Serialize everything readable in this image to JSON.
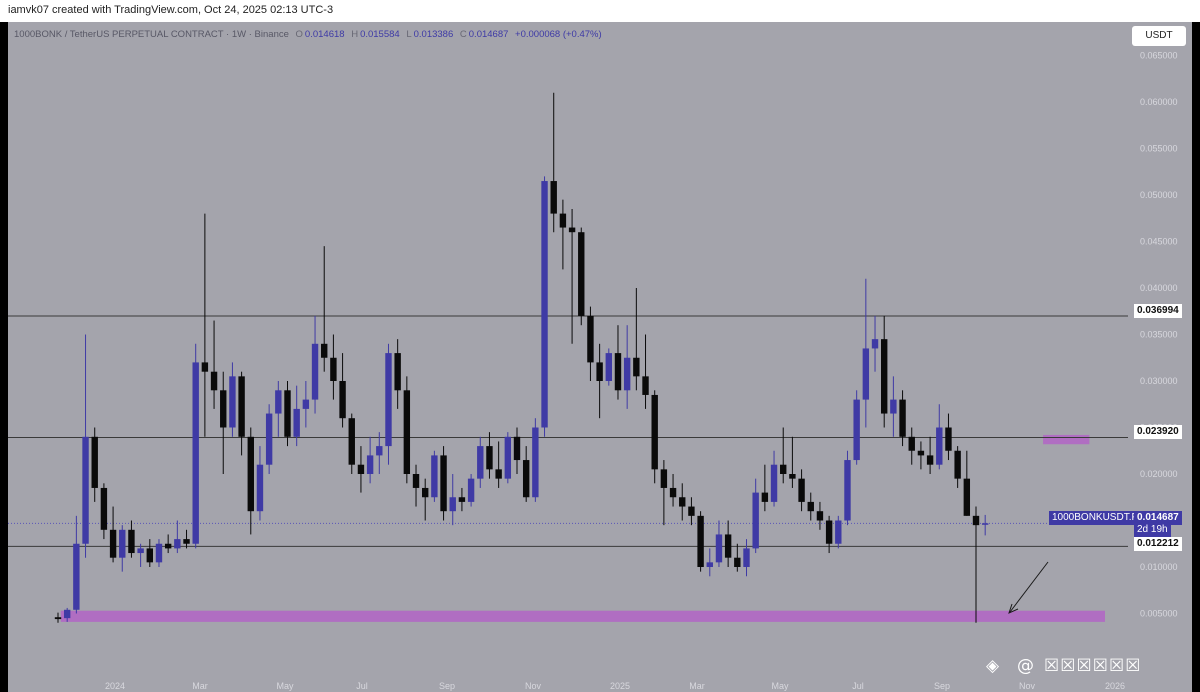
{
  "header": {
    "credit": "iamvk07 created with TradingView.com, Oct 24, 2025 02:13 UTC-3"
  },
  "legend": {
    "symbol": "1000BONK / TetherUS PERPETUAL CONTRACT · 1W · Binance",
    "open_label": "O",
    "open": "0.014618",
    "high_label": "H",
    "high": "0.015584",
    "low_label": "L",
    "low": "0.013386",
    "close_label": "C",
    "close": "0.014687",
    "change": "+0.000068 (+0.47%)"
  },
  "currency_button": "USDT",
  "price_labels": {
    "line_top": "0.036994",
    "line_mid": "0.023920",
    "ticker": "1000BONKUSDT.P",
    "last": "0.014687",
    "countdown": "2d 19h",
    "line_low": "0.012212"
  },
  "watermark": {
    "glyph": "◈",
    "at": "@",
    "masked": "☒☒☒☒☒☒"
  },
  "colors": {
    "bull": "#3f3aa5",
    "bear": "#0a0a0a",
    "zone": "#b06ec2",
    "line": "#3a3a3a",
    "background": "#a4a4ac"
  },
  "chart_data": {
    "type": "candlestick",
    "symbol": "1000BONKUSDT.P",
    "timeframe": "1W",
    "y_scale": "linear",
    "ylim": [
      0.0,
      0.066
    ],
    "y_ticks": [
      "0.005000",
      "0.010000",
      "0.015000",
      "0.020000",
      "0.025000",
      "0.030000",
      "0.035000",
      "0.040000",
      "0.045000",
      "0.050000",
      "0.055000",
      "0.060000",
      "0.065000"
    ],
    "x_ticks": [
      "2024",
      "Mar",
      "May",
      "Jul",
      "Sep",
      "Nov",
      "2025",
      "Mar",
      "May",
      "Jul",
      "Sep",
      "Nov",
      "2026"
    ],
    "horizontal_lines": [
      0.036994,
      0.02392,
      0.012212
    ],
    "last_price_line": 0.014687,
    "zones": [
      {
        "from": 0.0041,
        "to": 0.0053,
        "start": 0,
        "end": "right"
      },
      {
        "from": 0.0232,
        "to": 0.0242,
        "start": 107,
        "end": 112
      }
    ],
    "candles": [
      {
        "o": 0.0046,
        "h": 0.0051,
        "l": 0.004,
        "c": 0.0044
      },
      {
        "o": 0.0045,
        "h": 0.0056,
        "l": 0.0041,
        "c": 0.0054
      },
      {
        "o": 0.0054,
        "h": 0.0155,
        "l": 0.005,
        "c": 0.0125
      },
      {
        "o": 0.0125,
        "h": 0.035,
        "l": 0.011,
        "c": 0.024
      },
      {
        "o": 0.024,
        "h": 0.025,
        "l": 0.017,
        "c": 0.0185
      },
      {
        "o": 0.0185,
        "h": 0.019,
        "l": 0.013,
        "c": 0.014
      },
      {
        "o": 0.014,
        "h": 0.0165,
        "l": 0.0105,
        "c": 0.011
      },
      {
        "o": 0.011,
        "h": 0.0145,
        "l": 0.0095,
        "c": 0.014
      },
      {
        "o": 0.014,
        "h": 0.015,
        "l": 0.011,
        "c": 0.0115
      },
      {
        "o": 0.0115,
        "h": 0.0125,
        "l": 0.01,
        "c": 0.012
      },
      {
        "o": 0.012,
        "h": 0.013,
        "l": 0.01,
        "c": 0.0105
      },
      {
        "o": 0.0105,
        "h": 0.013,
        "l": 0.01,
        "c": 0.0125
      },
      {
        "o": 0.0125,
        "h": 0.0135,
        "l": 0.0115,
        "c": 0.012
      },
      {
        "o": 0.012,
        "h": 0.015,
        "l": 0.0115,
        "c": 0.013
      },
      {
        "o": 0.013,
        "h": 0.014,
        "l": 0.012,
        "c": 0.0125
      },
      {
        "o": 0.0125,
        "h": 0.034,
        "l": 0.012,
        "c": 0.032
      },
      {
        "o": 0.032,
        "h": 0.048,
        "l": 0.024,
        "c": 0.031
      },
      {
        "o": 0.031,
        "h": 0.0365,
        "l": 0.027,
        "c": 0.029
      },
      {
        "o": 0.029,
        "h": 0.031,
        "l": 0.02,
        "c": 0.025
      },
      {
        "o": 0.025,
        "h": 0.032,
        "l": 0.024,
        "c": 0.0305
      },
      {
        "o": 0.0305,
        "h": 0.031,
        "l": 0.022,
        "c": 0.024
      },
      {
        "o": 0.024,
        "h": 0.025,
        "l": 0.0135,
        "c": 0.016
      },
      {
        "o": 0.016,
        "h": 0.023,
        "l": 0.015,
        "c": 0.021
      },
      {
        "o": 0.021,
        "h": 0.0275,
        "l": 0.02,
        "c": 0.0265
      },
      {
        "o": 0.0265,
        "h": 0.03,
        "l": 0.024,
        "c": 0.029
      },
      {
        "o": 0.029,
        "h": 0.03,
        "l": 0.023,
        "c": 0.024
      },
      {
        "o": 0.024,
        "h": 0.0295,
        "l": 0.023,
        "c": 0.027
      },
      {
        "o": 0.027,
        "h": 0.03,
        "l": 0.025,
        "c": 0.028
      },
      {
        "o": 0.028,
        "h": 0.037,
        "l": 0.0265,
        "c": 0.034
      },
      {
        "o": 0.034,
        "h": 0.0445,
        "l": 0.031,
        "c": 0.0325
      },
      {
        "o": 0.0325,
        "h": 0.035,
        "l": 0.028,
        "c": 0.03
      },
      {
        "o": 0.03,
        "h": 0.033,
        "l": 0.025,
        "c": 0.026
      },
      {
        "o": 0.026,
        "h": 0.0265,
        "l": 0.02,
        "c": 0.021
      },
      {
        "o": 0.021,
        "h": 0.023,
        "l": 0.018,
        "c": 0.02
      },
      {
        "o": 0.02,
        "h": 0.024,
        "l": 0.019,
        "c": 0.022
      },
      {
        "o": 0.022,
        "h": 0.0245,
        "l": 0.02,
        "c": 0.023
      },
      {
        "o": 0.023,
        "h": 0.034,
        "l": 0.021,
        "c": 0.033
      },
      {
        "o": 0.033,
        "h": 0.0345,
        "l": 0.027,
        "c": 0.029
      },
      {
        "o": 0.029,
        "h": 0.0305,
        "l": 0.019,
        "c": 0.02
      },
      {
        "o": 0.02,
        "h": 0.021,
        "l": 0.0165,
        "c": 0.0185
      },
      {
        "o": 0.0185,
        "h": 0.0195,
        "l": 0.015,
        "c": 0.0175
      },
      {
        "o": 0.0175,
        "h": 0.0225,
        "l": 0.017,
        "c": 0.022
      },
      {
        "o": 0.022,
        "h": 0.023,
        "l": 0.015,
        "c": 0.016
      },
      {
        "o": 0.016,
        "h": 0.02,
        "l": 0.0145,
        "c": 0.0175
      },
      {
        "o": 0.0175,
        "h": 0.0185,
        "l": 0.016,
        "c": 0.017
      },
      {
        "o": 0.017,
        "h": 0.02,
        "l": 0.0165,
        "c": 0.0195
      },
      {
        "o": 0.0195,
        "h": 0.024,
        "l": 0.0185,
        "c": 0.023
      },
      {
        "o": 0.023,
        "h": 0.0245,
        "l": 0.0195,
        "c": 0.0205
      },
      {
        "o": 0.0205,
        "h": 0.0235,
        "l": 0.0185,
        "c": 0.0195
      },
      {
        "o": 0.0195,
        "h": 0.0245,
        "l": 0.019,
        "c": 0.024
      },
      {
        "o": 0.024,
        "h": 0.025,
        "l": 0.02,
        "c": 0.0215
      },
      {
        "o": 0.0215,
        "h": 0.023,
        "l": 0.017,
        "c": 0.0175
      },
      {
        "o": 0.0175,
        "h": 0.026,
        "l": 0.017,
        "c": 0.025
      },
      {
        "o": 0.025,
        "h": 0.052,
        "l": 0.024,
        "c": 0.0515
      },
      {
        "o": 0.0515,
        "h": 0.061,
        "l": 0.046,
        "c": 0.048
      },
      {
        "o": 0.048,
        "h": 0.0495,
        "l": 0.042,
        "c": 0.0465
      },
      {
        "o": 0.0465,
        "h": 0.0485,
        "l": 0.034,
        "c": 0.046
      },
      {
        "o": 0.046,
        "h": 0.0465,
        "l": 0.036,
        "c": 0.037
      },
      {
        "o": 0.037,
        "h": 0.038,
        "l": 0.03,
        "c": 0.032
      },
      {
        "o": 0.032,
        "h": 0.034,
        "l": 0.026,
        "c": 0.03
      },
      {
        "o": 0.03,
        "h": 0.0335,
        "l": 0.0295,
        "c": 0.033
      },
      {
        "o": 0.033,
        "h": 0.036,
        "l": 0.028,
        "c": 0.029
      },
      {
        "o": 0.029,
        "h": 0.036,
        "l": 0.027,
        "c": 0.0325
      },
      {
        "o": 0.0325,
        "h": 0.04,
        "l": 0.029,
        "c": 0.0305
      },
      {
        "o": 0.0305,
        "h": 0.035,
        "l": 0.027,
        "c": 0.0285
      },
      {
        "o": 0.0285,
        "h": 0.029,
        "l": 0.019,
        "c": 0.0205
      },
      {
        "o": 0.0205,
        "h": 0.0215,
        "l": 0.0145,
        "c": 0.0185
      },
      {
        "o": 0.0185,
        "h": 0.02,
        "l": 0.0165,
        "c": 0.0175
      },
      {
        "o": 0.0175,
        "h": 0.019,
        "l": 0.015,
        "c": 0.0165
      },
      {
        "o": 0.0165,
        "h": 0.0175,
        "l": 0.0145,
        "c": 0.0155
      },
      {
        "o": 0.0155,
        "h": 0.016,
        "l": 0.0095,
        "c": 0.01
      },
      {
        "o": 0.01,
        "h": 0.012,
        "l": 0.009,
        "c": 0.0105
      },
      {
        "o": 0.0105,
        "h": 0.015,
        "l": 0.01,
        "c": 0.0135
      },
      {
        "o": 0.0135,
        "h": 0.015,
        "l": 0.01,
        "c": 0.011
      },
      {
        "o": 0.011,
        "h": 0.0125,
        "l": 0.0095,
        "c": 0.01
      },
      {
        "o": 0.01,
        "h": 0.013,
        "l": 0.009,
        "c": 0.012
      },
      {
        "o": 0.012,
        "h": 0.0195,
        "l": 0.0115,
        "c": 0.018
      },
      {
        "o": 0.018,
        "h": 0.021,
        "l": 0.016,
        "c": 0.017
      },
      {
        "o": 0.017,
        "h": 0.0225,
        "l": 0.0165,
        "c": 0.021
      },
      {
        "o": 0.021,
        "h": 0.025,
        "l": 0.019,
        "c": 0.02
      },
      {
        "o": 0.02,
        "h": 0.024,
        "l": 0.0185,
        "c": 0.0195
      },
      {
        "o": 0.0195,
        "h": 0.0205,
        "l": 0.016,
        "c": 0.017
      },
      {
        "o": 0.017,
        "h": 0.018,
        "l": 0.015,
        "c": 0.016
      },
      {
        "o": 0.016,
        "h": 0.017,
        "l": 0.014,
        "c": 0.015
      },
      {
        "o": 0.015,
        "h": 0.0155,
        "l": 0.0115,
        "c": 0.0125
      },
      {
        "o": 0.0125,
        "h": 0.0155,
        "l": 0.012,
        "c": 0.015
      },
      {
        "o": 0.015,
        "h": 0.0225,
        "l": 0.0145,
        "c": 0.0215
      },
      {
        "o": 0.0215,
        "h": 0.029,
        "l": 0.021,
        "c": 0.028
      },
      {
        "o": 0.028,
        "h": 0.041,
        "l": 0.025,
        "c": 0.0335
      },
      {
        "o": 0.0335,
        "h": 0.037,
        "l": 0.031,
        "c": 0.0345
      },
      {
        "o": 0.0345,
        "h": 0.037,
        "l": 0.025,
        "c": 0.0265
      },
      {
        "o": 0.0265,
        "h": 0.0305,
        "l": 0.024,
        "c": 0.028
      },
      {
        "o": 0.028,
        "h": 0.029,
        "l": 0.023,
        "c": 0.024
      },
      {
        "o": 0.024,
        "h": 0.025,
        "l": 0.021,
        "c": 0.0225
      },
      {
        "o": 0.0225,
        "h": 0.0235,
        "l": 0.0205,
        "c": 0.022
      },
      {
        "o": 0.022,
        "h": 0.024,
        "l": 0.02,
        "c": 0.021
      },
      {
        "o": 0.021,
        "h": 0.0275,
        "l": 0.0205,
        "c": 0.025
      },
      {
        "o": 0.025,
        "h": 0.0265,
        "l": 0.0215,
        "c": 0.0225
      },
      {
        "o": 0.0225,
        "h": 0.023,
        "l": 0.0185,
        "c": 0.0195
      },
      {
        "o": 0.0195,
        "h": 0.0225,
        "l": 0.0155,
        "c": 0.0155
      },
      {
        "o": 0.0155,
        "h": 0.0165,
        "l": 0.004,
        "c": 0.0145
      },
      {
        "o": 0.0146,
        "h": 0.0156,
        "l": 0.0134,
        "c": 0.0147
      }
    ]
  }
}
